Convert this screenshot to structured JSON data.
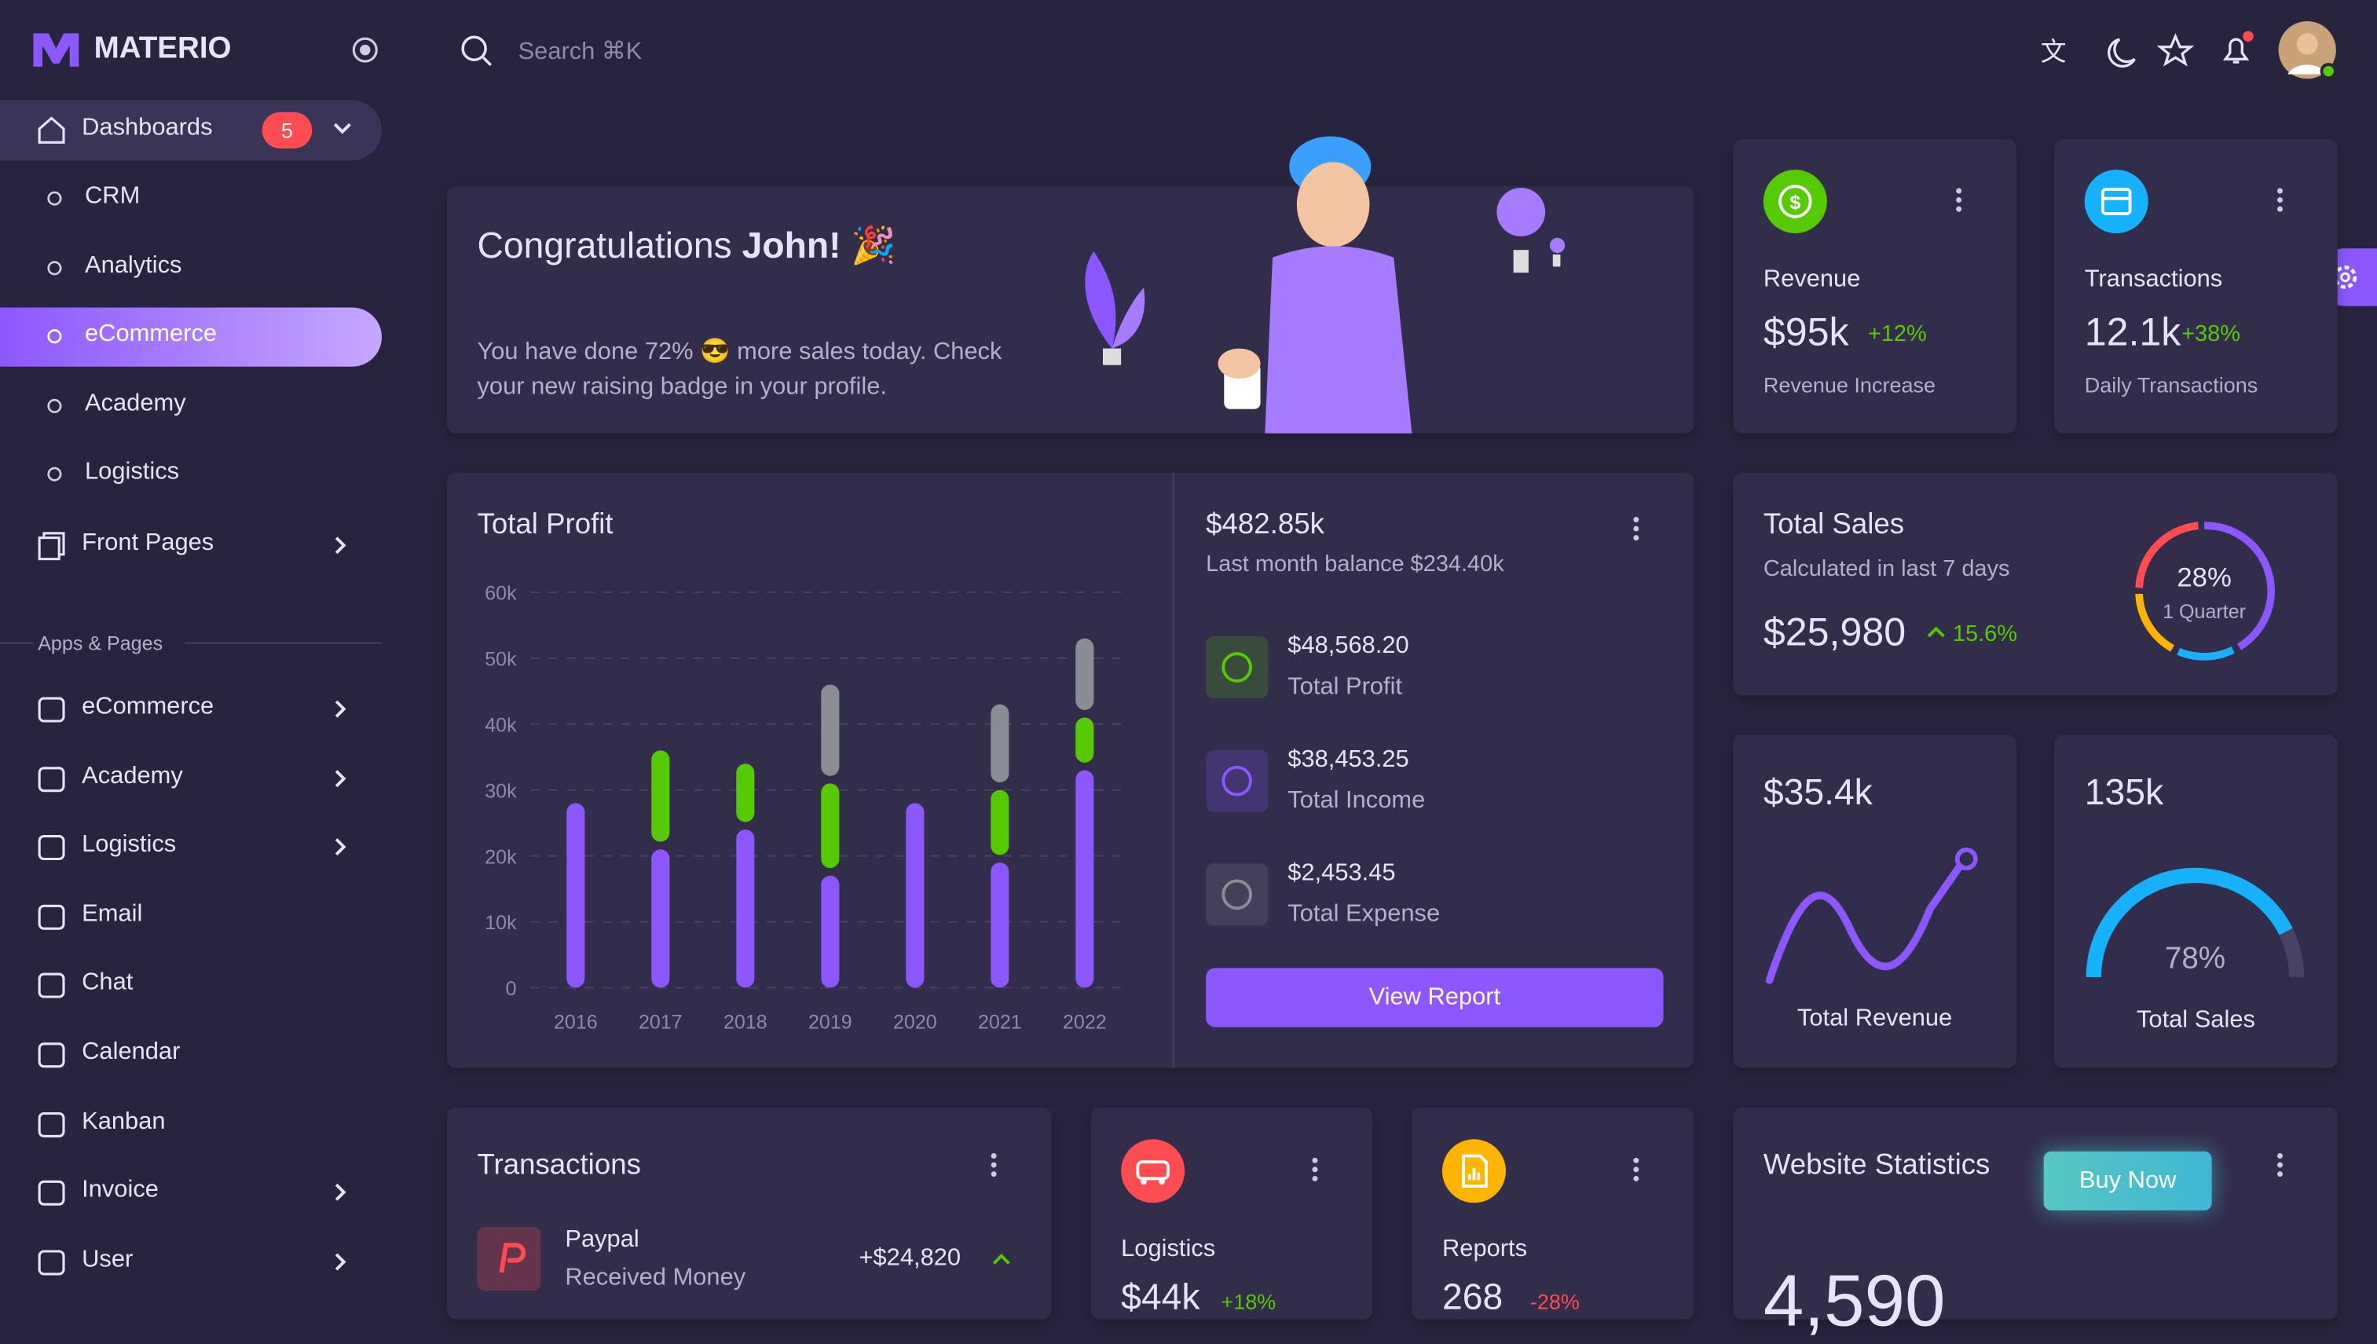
{
  "brand": "MATERIO",
  "search": "Search ⌘K",
  "sidebar": {
    "dashboards": "Dashboards",
    "badge": "5",
    "dashboard_items": [
      "CRM",
      "Analytics",
      "eCommerce",
      "Academy",
      "Logistics"
    ],
    "front_pages": "Front Pages",
    "section": "Apps & Pages",
    "apps": [
      "eCommerce",
      "Academy",
      "Logistics",
      "Email",
      "Chat",
      "Calendar",
      "Kanban",
      "Invoice",
      "User"
    ]
  },
  "congrats": {
    "title": "Congratulations",
    "name": "John!",
    "emoji": "🎉",
    "text": "You have done 72% 😎 more sales today. Check your new raising badge in your profile."
  },
  "revenue": {
    "title": "Revenue",
    "value": "$95k",
    "change": "+12%",
    "caption": "Revenue Increase"
  },
  "transactions_card": {
    "title": "Transactions",
    "value": "12.1k",
    "change": "+38%",
    "caption": "Daily Transactions"
  },
  "total_profit": {
    "type": "bar",
    "title": "Total Profit",
    "stacked": true,
    "categories": [
      "2016",
      "2017",
      "2018",
      "2019",
      "2020",
      "2021",
      "2022"
    ],
    "series": [
      {
        "color": "#8c57ff",
        "values": [
          28000,
          21000,
          24000,
          17000,
          28000,
          19000,
          33000
        ]
      },
      {
        "color": "#56ca00",
        "values": [
          0,
          15000,
          10000,
          14000,
          0,
          11000,
          8000
        ]
      },
      {
        "color": "#8a8d93",
        "values": [
          0,
          0,
          0,
          15000,
          0,
          13000,
          12000
        ]
      }
    ],
    "ylim": [
      0,
      60000
    ],
    "yticks": [
      {
        "value": 0,
        "label": "0"
      },
      {
        "value": 10000,
        "label": "10k"
      },
      {
        "value": 20000,
        "label": "20k"
      },
      {
        "value": 30000,
        "label": "30k"
      },
      {
        "value": 40000,
        "label": "40k"
      },
      {
        "value": 50000,
        "label": "50k"
      },
      {
        "value": 60000,
        "label": "60k"
      }
    ],
    "grid": true
  },
  "profit_summary": {
    "amount": "$482.85k",
    "subtitle": "Last month balance $234.40k",
    "items": [
      {
        "amount": "$48,568.20",
        "label": "Total Profit"
      },
      {
        "amount": "$38,453.25",
        "label": "Total Income"
      },
      {
        "amount": "$2,453.45",
        "label": "Total Expense"
      }
    ],
    "button": "View Report"
  },
  "total_sales": {
    "title": "Total Sales",
    "subtitle": "Calculated in last 7 days",
    "amount": "$25,980",
    "change": "15.6%",
    "donut_label": "28%",
    "donut_caption": "1 Quarter"
  },
  "revenue_line": {
    "value": "$35.4k",
    "caption": "Total Revenue"
  },
  "sales_gauge": {
    "value": "135k",
    "caption": "Total Sales",
    "percent": "78%"
  },
  "transactions": {
    "title": "Transactions",
    "rows": [
      {
        "name": "Paypal",
        "sub": "Received Money",
        "amount": "+$24,820"
      }
    ]
  },
  "logistics": {
    "title": "Logistics",
    "value": "$44k",
    "change": "+18%"
  },
  "reports": {
    "title": "Reports",
    "value": "268",
    "change": "-28%"
  },
  "website_stats": {
    "title": "Website Statistics",
    "button": "Buy Now",
    "value": "4,590"
  }
}
